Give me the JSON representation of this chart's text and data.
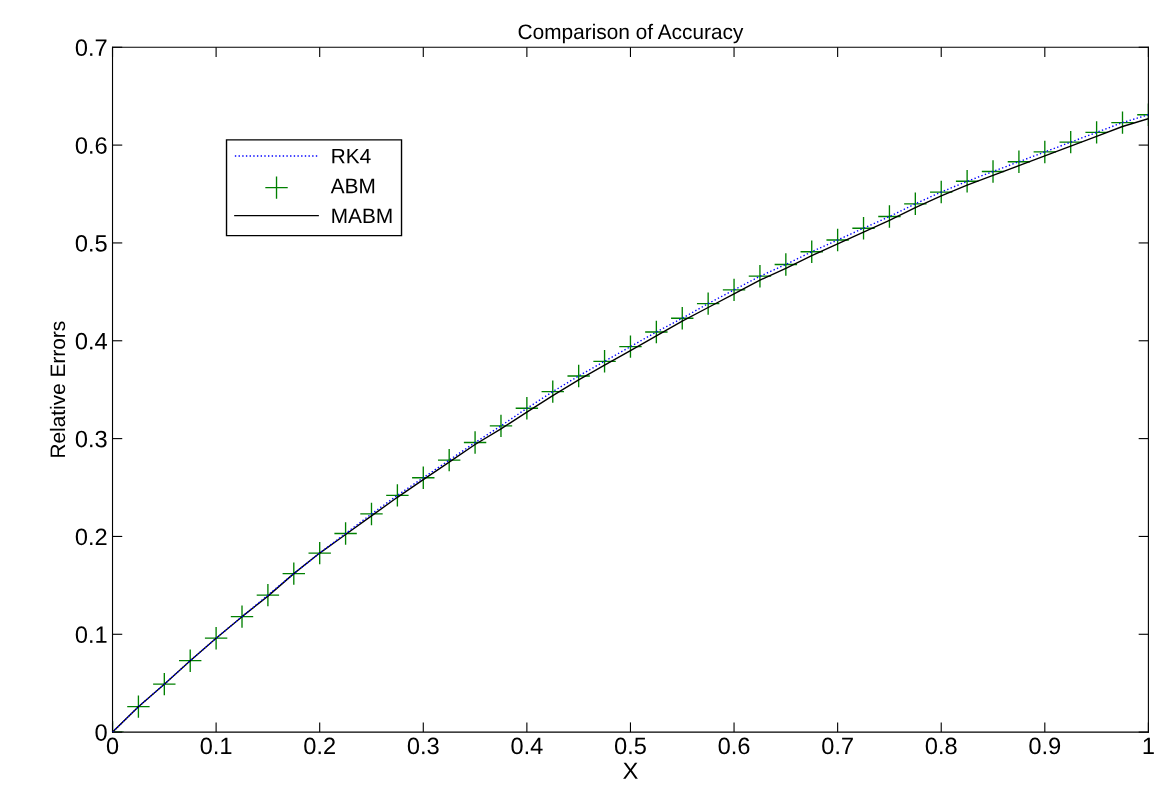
{
  "chart_data": {
    "type": "line",
    "title": "Comparison of Accuracy",
    "xlabel": "X",
    "ylabel": "Relative Errors",
    "x": [
      0,
      0.025,
      0.05,
      0.075,
      0.1,
      0.125,
      0.15,
      0.175,
      0.2,
      0.225,
      0.25,
      0.275,
      0.3,
      0.325,
      0.35,
      0.375,
      0.4,
      0.425,
      0.45,
      0.475,
      0.5,
      0.525,
      0.55,
      0.575,
      0.6,
      0.625,
      0.65,
      0.675,
      0.7,
      0.725,
      0.75,
      0.775,
      0.8,
      0.825,
      0.85,
      0.875,
      0.9,
      0.925,
      0.95,
      0.975,
      1
    ],
    "series": [
      {
        "name": "RK4",
        "color": "#0000ff",
        "line_style": "dotted",
        "values": [
          0,
          0.026,
          0.049,
          0.073,
          0.096,
          0.118,
          0.14,
          0.162,
          0.183,
          0.203,
          0.223,
          0.242,
          0.26,
          0.278,
          0.296,
          0.313,
          0.331,
          0.348,
          0.364,
          0.379,
          0.394,
          0.409,
          0.423,
          0.438,
          0.452,
          0.466,
          0.478,
          0.491,
          0.503,
          0.515,
          0.527,
          0.54,
          0.552,
          0.563,
          0.573,
          0.583,
          0.593,
          0.603,
          0.613,
          0.623,
          0.631
        ]
      },
      {
        "name": "ABM",
        "color": "#008000",
        "type": "scatter",
        "marker": "cross",
        "values": [
          0,
          0.026,
          0.049,
          0.073,
          0.096,
          0.118,
          0.14,
          0.162,
          0.183,
          0.203,
          0.223,
          0.242,
          0.26,
          0.278,
          0.296,
          0.313,
          0.331,
          0.348,
          0.364,
          0.379,
          0.394,
          0.409,
          0.423,
          0.438,
          0.452,
          0.466,
          0.478,
          0.491,
          0.503,
          0.515,
          0.527,
          0.54,
          0.552,
          0.563,
          0.573,
          0.583,
          0.593,
          0.603,
          0.613,
          0.623,
          0.631
        ]
      },
      {
        "name": "MABM",
        "color": "#000000",
        "line_style": "solid",
        "values": [
          0,
          0.026,
          0.049,
          0.073,
          0.096,
          0.118,
          0.139,
          0.162,
          0.183,
          0.202,
          0.221,
          0.24,
          0.258,
          0.276,
          0.294,
          0.31,
          0.327,
          0.344,
          0.36,
          0.375,
          0.39,
          0.405,
          0.42,
          0.434,
          0.448,
          0.462,
          0.474,
          0.487,
          0.499,
          0.511,
          0.523,
          0.536,
          0.548,
          0.559,
          0.569,
          0.579,
          0.589,
          0.599,
          0.609,
          0.619,
          0.627
        ]
      }
    ],
    "xlim": [
      0,
      1
    ],
    "ylim": [
      0,
      0.7
    ],
    "xticks": [
      0,
      0.1,
      0.2,
      0.3,
      0.4,
      0.5,
      0.6,
      0.7,
      0.8,
      0.9,
      1
    ],
    "yticks": [
      0,
      0.1,
      0.2,
      0.3,
      0.4,
      0.5,
      0.6,
      0.7
    ],
    "grid": false,
    "legend": "top left"
  }
}
